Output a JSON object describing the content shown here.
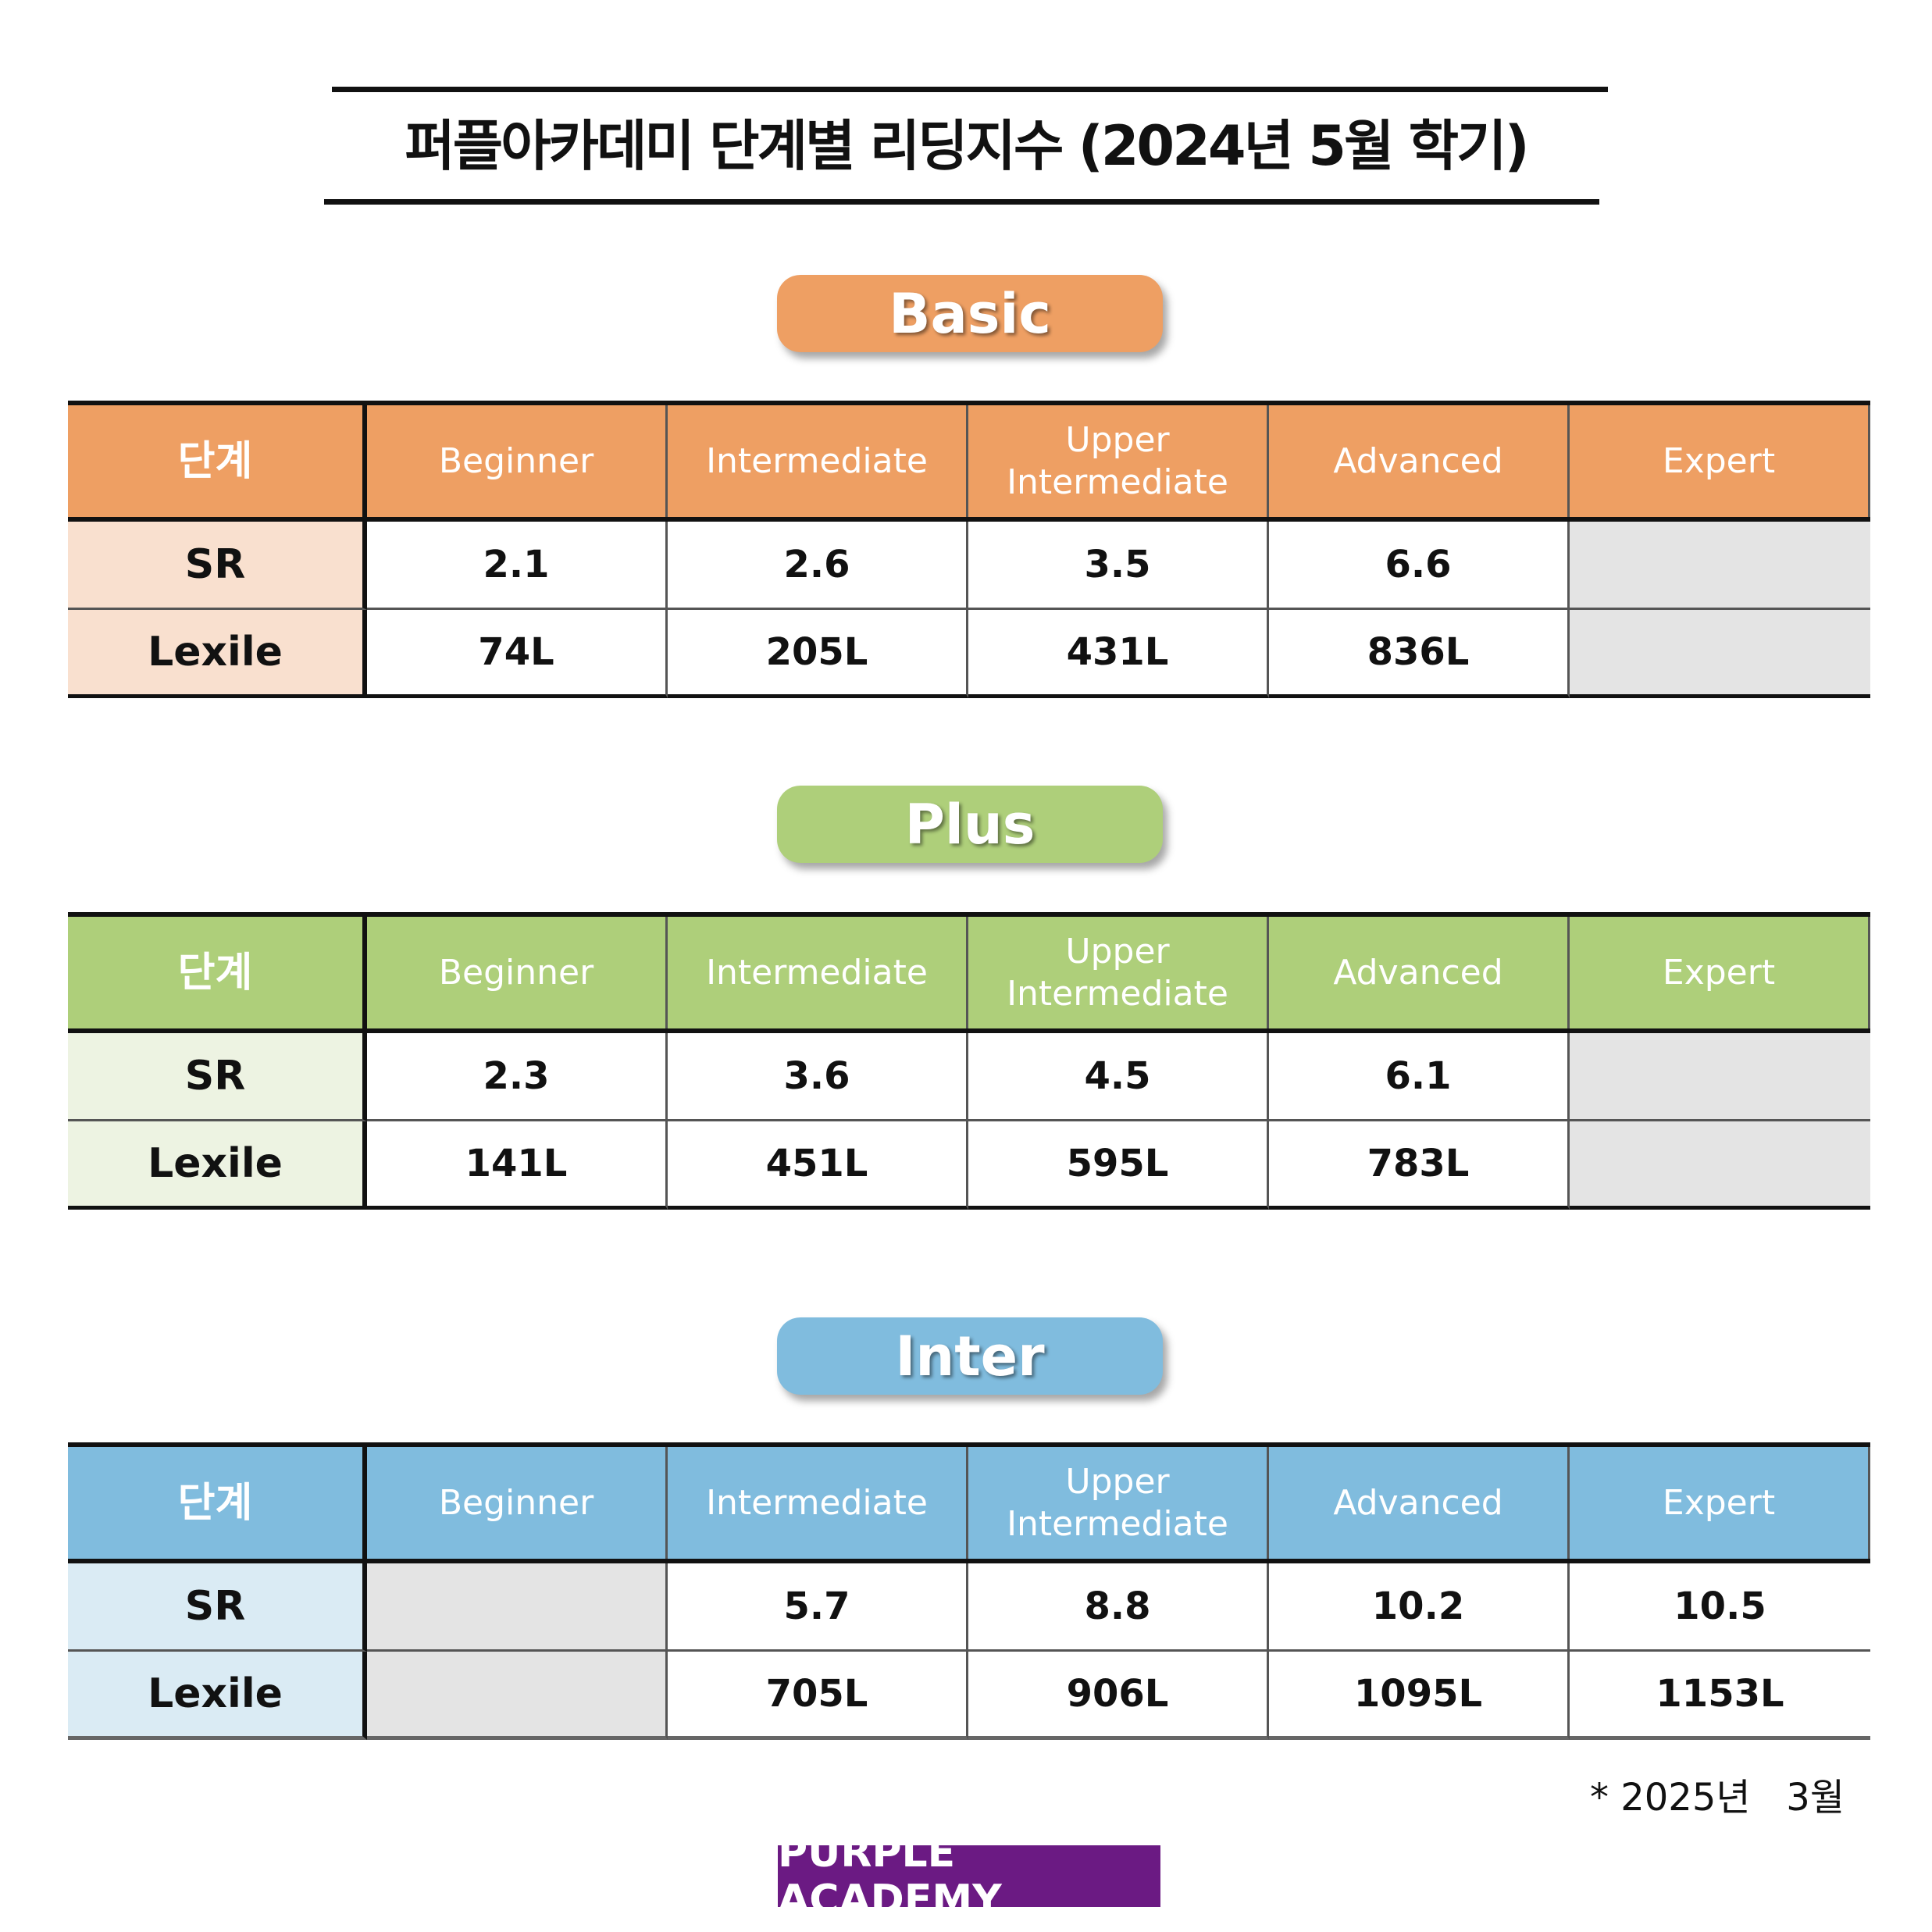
{
  "header": {
    "title": "퍼플아카데미 단계별 리딩지수 (2024년 5월 학기)"
  },
  "sections": [
    {
      "name": "Basic",
      "table": {
        "columns": [
          "단계",
          "Beginner",
          "Intermediate",
          "Upper\nIntermediate",
          "Advanced",
          "Expert"
        ],
        "rows": [
          [
            "SR",
            "2.1",
            "2.6",
            "3.5",
            "6.6",
            null
          ],
          [
            "Lexile",
            "74L",
            "205L",
            "431L",
            "836L",
            null
          ]
        ]
      }
    },
    {
      "name": "Plus",
      "table": {
        "columns": [
          "단계",
          "Beginner",
          "Intermediate",
          "Upper\nIntermediate",
          "Advanced",
          "Expert"
        ],
        "rows": [
          [
            "SR",
            "2.3",
            "3.6",
            "4.5",
            "6.1",
            null
          ],
          [
            "Lexile",
            "141L",
            "451L",
            "595L",
            "783L",
            null
          ]
        ]
      }
    },
    {
      "name": "Inter",
      "table": {
        "columns": [
          "단계",
          "Beginner",
          "Intermediate",
          "Upper\nIntermediate",
          "Advanced",
          "Expert"
        ],
        "rows": [
          [
            "SR",
            null,
            "5.7",
            "8.8",
            "10.2",
            "10.5"
          ],
          [
            "Lexile",
            null,
            "705L",
            "906L",
            "1095L",
            "1153L"
          ]
        ]
      }
    }
  ],
  "footnote": "* 2025년   3월",
  "brand": "PURPLE ACADEMY"
}
